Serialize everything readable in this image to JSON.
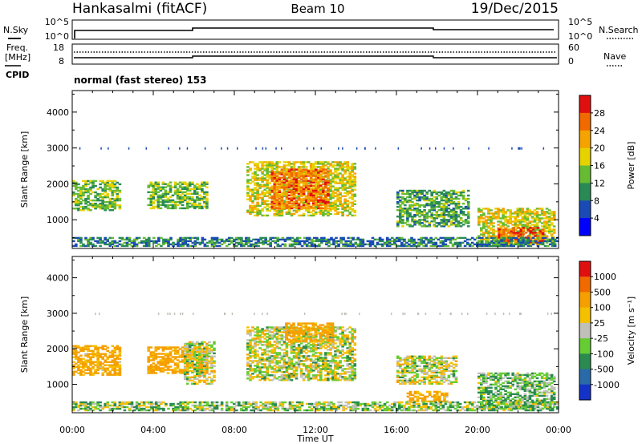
{
  "header": {
    "station": "Hankasalmi (fitACF)",
    "beam": "Beam 10",
    "date": "19/Dec/2015"
  },
  "top_panels": {
    "nsky": {
      "label": "N.Sky",
      "ticks": [
        "10^5",
        "10^0"
      ]
    },
    "nsearch": {
      "label": "N.Search",
      "ticks": [
        "10^5",
        "10^0"
      ]
    },
    "freq": {
      "label_line1": "Freq.",
      "label_line2": "[MHz]",
      "ticks": [
        "18",
        "8"
      ]
    },
    "nave": {
      "label": "Nave",
      "ticks": [
        "60",
        "0"
      ]
    },
    "cpid": {
      "label": "CPID",
      "value": "normal (fast stereo) 153"
    }
  },
  "chart_data": [
    {
      "type": "heatmap",
      "title": "Power",
      "xlabel": "Time UT",
      "ylabel": "Slant Range [km]",
      "xlim": [
        0,
        24
      ],
      "ylim": [
        200,
        4600
      ],
      "x_ticks": [
        "00:00",
        "04:00",
        "08:00",
        "12:00",
        "16:00",
        "20:00",
        "00:00"
      ],
      "y_ticks": [
        1000,
        2000,
        3000,
        4000
      ],
      "colorbar": {
        "label": "Power [dB]",
        "levels": [
          4,
          8,
          12,
          16,
          20,
          24,
          28
        ],
        "colors": [
          "#0000ff",
          "#1a4ab5",
          "#2a8a55",
          "#66bb33",
          "#e6d200",
          "#f5a300",
          "#f06a00",
          "#e01010"
        ]
      },
      "regions": [
        {
          "t0": 0.0,
          "t1": 2.4,
          "r0": 1250,
          "r1": 2100,
          "level": 14
        },
        {
          "t0": 3.7,
          "t1": 6.6,
          "r0": 1300,
          "r1": 2050,
          "level": 14
        },
        {
          "t0": 8.6,
          "t1": 13.9,
          "r0": 1100,
          "r1": 2600,
          "level": 18
        },
        {
          "t0": 9.8,
          "t1": 12.6,
          "r0": 1300,
          "r1": 2400,
          "level": 25
        },
        {
          "t0": 16.0,
          "t1": 19.5,
          "r0": 800,
          "r1": 1800,
          "level": 12
        },
        {
          "t0": 20.0,
          "t1": 23.8,
          "r0": 300,
          "r1": 1300,
          "level": 18
        },
        {
          "t0": 21.0,
          "t1": 23.2,
          "r0": 350,
          "r1": 800,
          "level": 27
        },
        {
          "t0": 0.0,
          "t1": 24.0,
          "r0": 250,
          "r1": 500,
          "level": 9
        }
      ]
    },
    {
      "type": "heatmap",
      "title": "Velocity",
      "xlabel": "Time UT",
      "ylabel": "Slant Range [km]",
      "xlim": [
        0,
        24
      ],
      "ylim": [
        200,
        4600
      ],
      "x_ticks": [
        "00:00",
        "04:00",
        "08:00",
        "12:00",
        "16:00",
        "20:00",
        "00:00"
      ],
      "y_ticks": [
        1000,
        2000,
        3000,
        4000
      ],
      "colorbar": {
        "label": "Velocity [m s⁻¹]",
        "levels": [
          1000,
          500,
          100,
          25,
          -25,
          -100,
          -500,
          -1000
        ],
        "colors": [
          "#1432c8",
          "#2a6aa8",
          "#2a8a50",
          "#66cc33",
          "#c0c0b8",
          "#f5c000",
          "#f5a000",
          "#f06a00",
          "#e01010"
        ]
      },
      "regions": [
        {
          "t0": 0.0,
          "t1": 2.4,
          "r0": 1250,
          "r1": 2100,
          "value": -150
        },
        {
          "t0": 3.7,
          "t1": 6.6,
          "r0": 1300,
          "r1": 2050,
          "value": -200
        },
        {
          "t0": 5.5,
          "t1": 7.0,
          "r0": 1000,
          "r1": 2200,
          "value": 0
        },
        {
          "t0": 8.6,
          "t1": 13.9,
          "r0": 1100,
          "r1": 2600,
          "value": 0
        },
        {
          "t0": 10.5,
          "t1": 12.8,
          "r0": 2200,
          "r1": 2700,
          "value": -200
        },
        {
          "t0": 16.0,
          "t1": 19.0,
          "r0": 1000,
          "r1": 1800,
          "value": 0
        },
        {
          "t0": 16.5,
          "t1": 18.5,
          "r0": 500,
          "r1": 800,
          "value": -150
        },
        {
          "t0": 20.0,
          "t1": 23.8,
          "r0": 300,
          "r1": 1300,
          "value": 80
        },
        {
          "t0": 0.0,
          "t1": 24.0,
          "r0": 250,
          "r1": 500,
          "value": 50
        }
      ]
    }
  ]
}
